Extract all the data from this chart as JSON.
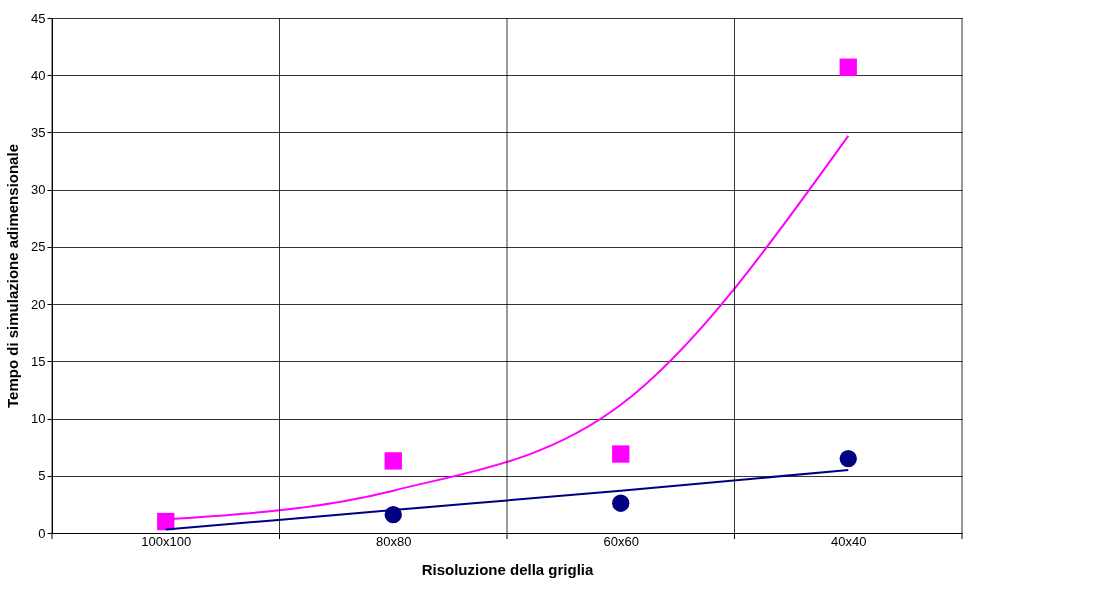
{
  "chart_data": {
    "type": "scatter",
    "xlabel": "Risoluzione della griglia",
    "ylabel": "Tempo di simulazione adimensionale",
    "categories": [
      "100x100",
      "80x80",
      "60x60",
      "40x40"
    ],
    "series": [
      {
        "marker": "circle",
        "color": "#000080",
        "values": [
          null,
          1.6,
          2.6,
          6.5
        ]
      },
      {
        "marker": "square",
        "color": "#ff00ff",
        "values": [
          1.0,
          6.3,
          6.9,
          40.7
        ]
      },
      {
        "type": "line",
        "color": "#000080",
        "values": [
          0.3,
          2.0,
          3.7,
          5.5
        ]
      },
      {
        "type": "line",
        "color": "#ff00ff",
        "values": [
          1.2,
          3.7,
          11.2,
          34.7
        ]
      }
    ],
    "ylim": [
      0,
      45
    ],
    "yticks": [
      0,
      5,
      10,
      15,
      20,
      25,
      30,
      35,
      40,
      45
    ],
    "grid": true
  }
}
